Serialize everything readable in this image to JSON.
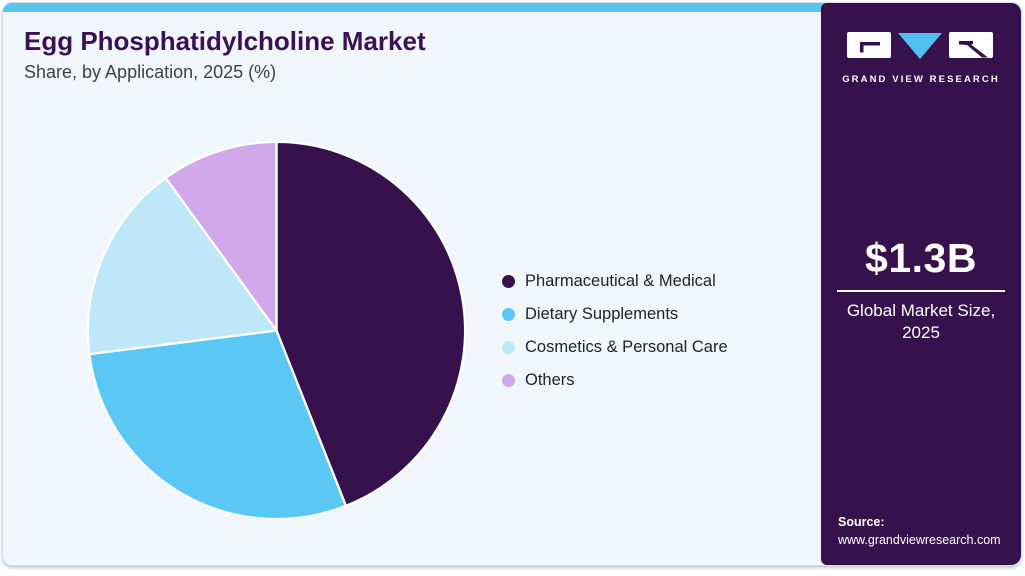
{
  "header": {
    "title": "Egg Phosphatidylcholine Market",
    "subtitle": "Share, by Application, 2025 (%)"
  },
  "chart_data": {
    "type": "pie",
    "title": "Egg Phosphatidylcholine Market Share, by Application, 2025 (%)",
    "categories": [
      "Pharmaceutical & Medical",
      "Dietary Supplements",
      "Cosmetics & Personal Care",
      "Others"
    ],
    "values": [
      44,
      29,
      17,
      10
    ],
    "unit": "percent-share",
    "colors": [
      "#36114B",
      "#5AC7F4",
      "#BEE8F9",
      "#D1A9EA"
    ],
    "start_angle_deg": 0,
    "direction": "clockwise",
    "legend_position": "right",
    "slice_gap_color": "#FFFFFF"
  },
  "sidebar": {
    "logo_text": "GRAND VIEW RESEARCH",
    "market_size_value": "$1.3B",
    "market_size_label_line1": "Global Market Size,",
    "market_size_label_line2": "2025",
    "source_label": "Source:",
    "source_url": "www.grandviewresearch.com",
    "background_color": "#37114B"
  },
  "theme": {
    "accent_bar_color": "#56C5F0",
    "card_background": "#F0F6FA",
    "title_color": "#3B1056",
    "subtitle_color": "#3F4147",
    "logo_triangle_color": "#4EC1EE"
  }
}
